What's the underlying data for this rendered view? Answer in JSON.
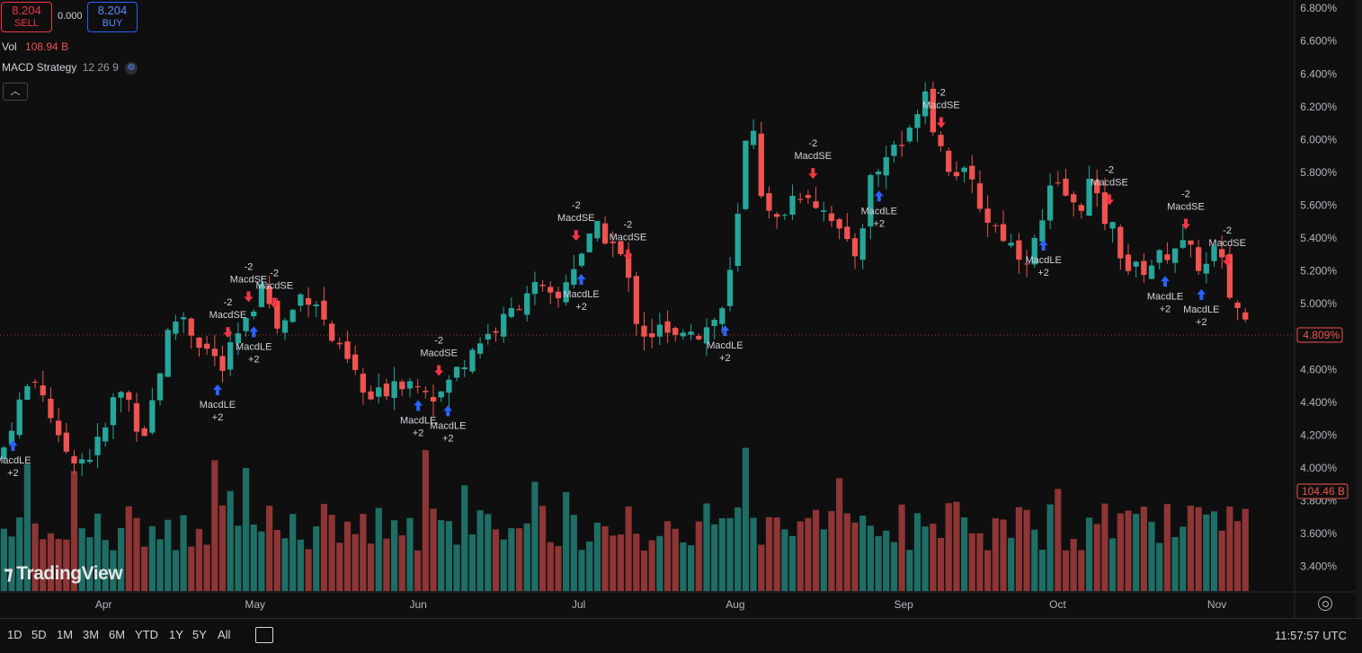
{
  "toolbar": {
    "sell_price": "8.204",
    "sell_label": "SELL",
    "spread": "0.000",
    "buy_price": "8.204",
    "buy_label": "BUY"
  },
  "legend": {
    "vol_label": "Vol",
    "vol_value": "108.94 B",
    "strategy_name": "MACD Strategy",
    "strategy_params": "12 26 9"
  },
  "bottom_bar": {
    "ranges": [
      "1D",
      "5D",
      "1M",
      "3M",
      "6M",
      "YTD",
      "1Y",
      "5Y",
      "All"
    ],
    "clock": "11:57:57 UTC"
  },
  "logo_text": "TradingView",
  "colors": {
    "up": "#26a69a",
    "down": "#ef5350",
    "up_volume": "#1e6e66",
    "down_volume": "#8e3535",
    "buy_arrow": "#2962ff",
    "sell_arrow": "#f23645"
  },
  "chart_data": {
    "type": "candlestick",
    "y_axis": {
      "range": [
        3.25,
        6.85
      ],
      "tick_labels": [
        "6.800%",
        "6.600%",
        "6.400%",
        "6.200%",
        "6.000%",
        "5.800%",
        "5.600%",
        "5.400%",
        "5.200%",
        "5.000%",
        "4.800%",
        "4.600%",
        "4.400%",
        "4.200%",
        "4.000%",
        "3.800%",
        "3.600%",
        "3.400%"
      ],
      "tick_values": [
        6.8,
        6.6,
        6.4,
        6.2,
        6.0,
        5.8,
        5.6,
        5.4,
        5.2,
        5.0,
        4.8,
        4.6,
        4.4,
        4.2,
        4.0,
        3.8,
        3.6,
        3.4
      ]
    },
    "x_axis": {
      "labels": [
        "Apr",
        "May",
        "Jun",
        "Jul",
        "Aug",
        "Sep",
        "Oct",
        "Nov"
      ],
      "label_positions": [
        0.08,
        0.197,
        0.323,
        0.447,
        0.568,
        0.698,
        0.817,
        0.94
      ]
    },
    "last_price_label": "4.809%",
    "last_price": 4.809,
    "last_volume_label": "104.46 B",
    "close_anchors": [
      [
        0,
        4.05
      ],
      [
        0.012,
        4.35
      ],
      [
        0.025,
        4.55
      ],
      [
        0.035,
        4.45
      ],
      [
        0.045,
        4.15
      ],
      [
        0.056,
        4.08
      ],
      [
        0.067,
        4.05
      ],
      [
        0.08,
        4.2
      ],
      [
        0.09,
        4.48
      ],
      [
        0.1,
        4.4
      ],
      [
        0.11,
        4.18
      ],
      [
        0.12,
        4.48
      ],
      [
        0.131,
        4.85
      ],
      [
        0.14,
        4.95
      ],
      [
        0.15,
        4.8
      ],
      [
        0.16,
        4.72
      ],
      [
        0.172,
        4.6
      ],
      [
        0.182,
        4.78
      ],
      [
        0.193,
        4.9
      ],
      [
        0.202,
        5.18
      ],
      [
        0.212,
        4.85
      ],
      [
        0.222,
        4.9
      ],
      [
        0.232,
        5.05
      ],
      [
        0.243,
        5.05
      ],
      [
        0.252,
        4.85
      ],
      [
        0.262,
        4.7
      ],
      [
        0.272,
        4.62
      ],
      [
        0.283,
        4.4
      ],
      [
        0.295,
        4.45
      ],
      [
        0.305,
        4.55
      ],
      [
        0.315,
        4.52
      ],
      [
        0.325,
        4.55
      ],
      [
        0.337,
        4.42
      ],
      [
        0.345,
        4.5
      ],
      [
        0.355,
        4.62
      ],
      [
        0.366,
        4.75
      ],
      [
        0.378,
        4.82
      ],
      [
        0.39,
        4.9
      ],
      [
        0.4,
        5.0
      ],
      [
        0.41,
        5.12
      ],
      [
        0.42,
        5.05
      ],
      [
        0.43,
        5.0
      ],
      [
        0.44,
        5.2
      ],
      [
        0.452,
        5.35
      ],
      [
        0.462,
        5.45
      ],
      [
        0.472,
        5.38
      ],
      [
        0.482,
        5.25
      ],
      [
        0.492,
        4.9
      ],
      [
        0.5,
        4.8
      ],
      [
        0.51,
        4.85
      ],
      [
        0.52,
        4.75
      ],
      [
        0.53,
        4.9
      ],
      [
        0.54,
        4.82
      ],
      [
        0.55,
        4.88
      ],
      [
        0.56,
        5.0
      ],
      [
        0.568,
        5.35
      ],
      [
        0.575,
        5.95
      ],
      [
        0.583,
        6.1
      ],
      [
        0.59,
        5.55
      ],
      [
        0.6,
        5.5
      ],
      [
        0.612,
        5.65
      ],
      [
        0.622,
        5.7
      ],
      [
        0.632,
        5.6
      ],
      [
        0.642,
        5.55
      ],
      [
        0.652,
        5.35
      ],
      [
        0.662,
        5.3
      ],
      [
        0.672,
        5.75
      ],
      [
        0.682,
        5.85
      ],
      [
        0.692,
        6.0
      ],
      [
        0.7,
        5.95
      ],
      [
        0.708,
        6.2
      ],
      [
        0.715,
        6.32
      ],
      [
        0.722,
        6.05
      ],
      [
        0.732,
        5.85
      ],
      [
        0.742,
        5.8
      ],
      [
        0.752,
        5.7
      ],
      [
        0.762,
        5.52
      ],
      [
        0.772,
        5.45
      ],
      [
        0.782,
        5.35
      ],
      [
        0.792,
        5.28
      ],
      [
        0.802,
        5.4
      ],
      [
        0.812,
        5.7
      ],
      [
        0.822,
        5.68
      ],
      [
        0.832,
        5.55
      ],
      [
        0.842,
        5.75
      ],
      [
        0.85,
        5.55
      ],
      [
        0.86,
        5.45
      ],
      [
        0.87,
        5.22
      ],
      [
        0.88,
        5.2
      ],
      [
        0.89,
        5.25
      ],
      [
        0.9,
        5.3
      ],
      [
        0.91,
        5.38
      ],
      [
        0.92,
        5.3
      ],
      [
        0.93,
        5.2
      ],
      [
        0.94,
        5.35
      ],
      [
        0.95,
        5.05
      ],
      [
        0.958,
        4.95
      ],
      [
        0.965,
        4.85
      ]
    ],
    "trade_markers": [
      {
        "x": 0.01,
        "type": "long",
        "label": "MacdLE",
        "qty": "+2"
      },
      {
        "x": 0.168,
        "type": "long",
        "label": "MacdLE",
        "qty": "+2"
      },
      {
        "x": 0.176,
        "type": "short",
        "label": "MacdSE",
        "qty": "-2"
      },
      {
        "x": 0.192,
        "type": "short",
        "label": "MacdSE",
        "qty": "-2"
      },
      {
        "x": 0.196,
        "type": "long",
        "label": "MacdLE",
        "qty": "+2"
      },
      {
        "x": 0.212,
        "type": "short",
        "label": "MacdSE",
        "qty": "-2"
      },
      {
        "x": 0.323,
        "type": "long",
        "label": "MacdLE",
        "qty": "+2"
      },
      {
        "x": 0.339,
        "type": "short",
        "label": "MacdSE",
        "qty": "-2"
      },
      {
        "x": 0.346,
        "type": "long",
        "label": "MacdLE",
        "qty": "+2"
      },
      {
        "x": 0.445,
        "type": "short",
        "label": "MacdSE",
        "qty": "-2"
      },
      {
        "x": 0.449,
        "type": "long",
        "label": "MacdLE",
        "qty": "+2"
      },
      {
        "x": 0.485,
        "type": "short",
        "label": "MacdSE",
        "qty": "-2"
      },
      {
        "x": 0.56,
        "type": "long",
        "label": "MacdLE",
        "qty": "+2"
      },
      {
        "x": 0.628,
        "type": "short",
        "label": "MacdSE",
        "qty": "-2"
      },
      {
        "x": 0.679,
        "type": "long",
        "label": "MacdLE",
        "qty": "+2"
      },
      {
        "x": 0.727,
        "type": "short",
        "label": "MacdSE",
        "qty": "-2"
      },
      {
        "x": 0.806,
        "type": "long",
        "label": "MacdLE",
        "qty": "+2"
      },
      {
        "x": 0.857,
        "type": "short",
        "label": "MacdSE",
        "qty": "-2"
      },
      {
        "x": 0.9,
        "type": "long",
        "label": "MacdLE",
        "qty": "+2"
      },
      {
        "x": 0.916,
        "type": "short",
        "label": "MacdSE",
        "qty": "-2"
      },
      {
        "x": 0.928,
        "type": "long",
        "label": "MacdLE",
        "qty": "+2"
      },
      {
        "x": 0.948,
        "type": "short",
        "label": "MacdSE",
        "qty": "-2"
      }
    ]
  }
}
